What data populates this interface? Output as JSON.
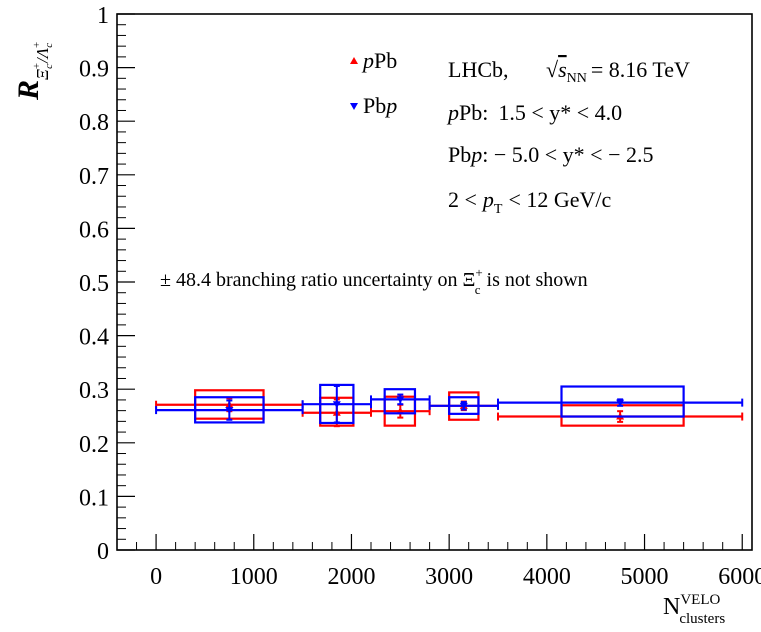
{
  "chart_data": {
    "type": "scatter",
    "title": "",
    "xlabel": {
      "base": "N",
      "sup": "VELO",
      "sub": "clusters"
    },
    "ylabel": {
      "base": "R",
      "sub_num": "Ξ",
      "sub_num_sup": "+",
      "sub_num_sub": "c",
      "sub_den": "Λ",
      "sub_den_sup": "+",
      "sub_den_sub": "c"
    },
    "xlim": [
      -400,
      6100
    ],
    "ylim": [
      0,
      1
    ],
    "xticks": [
      0,
      1000,
      2000,
      3000,
      4000,
      5000,
      6000
    ],
    "xtick_labels": [
      "0",
      "1000",
      "2000",
      "3000",
      "4000",
      "5000",
      "6000"
    ],
    "yticks": [
      0,
      0.1,
      0.2,
      0.3,
      0.4,
      0.5,
      0.6,
      0.7,
      0.8,
      0.9,
      1
    ],
    "ytick_labels": [
      "0",
      "0.1",
      "0.2",
      "0.3",
      "0.4",
      "0.5",
      "0.6",
      "0.7",
      "0.8",
      "0.9",
      "1"
    ],
    "grid": false,
    "legend_position": "top-left",
    "series": [
      {
        "name": "pPb",
        "name_parts": [
          {
            "t": "p",
            "italic": true
          },
          {
            "t": "Pb",
            "italic": false
          }
        ],
        "color": "#ff0000",
        "marker": "triangle-up",
        "points": [
          {
            "x": 750,
            "xlo": 0,
            "xhi": 1500,
            "y": 0.271,
            "stat": 0.012,
            "syslo": 0.245,
            "syshi": 0.298,
            "boxlo": 400,
            "boxhi": 1100
          },
          {
            "x": 1850,
            "xlo": 1500,
            "xhi": 2200,
            "y": 0.256,
            "stat": 0.025,
            "syslo": 0.232,
            "syshi": 0.284,
            "boxlo": 1680,
            "boxhi": 2020
          },
          {
            "x": 2500,
            "xlo": 2200,
            "xhi": 2800,
            "y": 0.259,
            "stat": 0.012,
            "syslo": 0.232,
            "syshi": 0.286,
            "boxlo": 2340,
            "boxhi": 2650
          },
          {
            "x": 3150,
            "xlo": 2800,
            "xhi": 3500,
            "y": 0.269,
            "stat": 0.008,
            "syslo": 0.243,
            "syshi": 0.294,
            "boxlo": 3000,
            "boxhi": 3300
          },
          {
            "x": 4750,
            "xlo": 3500,
            "xhi": 6000,
            "y": 0.249,
            "stat": 0.01,
            "syslo": 0.232,
            "syshi": 0.27,
            "boxlo": 4150,
            "boxhi": 5400
          }
        ]
      },
      {
        "name": "Pbp",
        "name_parts": [
          {
            "t": "Pb",
            "italic": false
          },
          {
            "t": "p",
            "italic": true
          }
        ],
        "color": "#0000ff",
        "marker": "triangle-down",
        "points": [
          {
            "x": 750,
            "xlo": 0,
            "xhi": 1500,
            "y": 0.261,
            "stat": 0.018,
            "syslo": 0.238,
            "syshi": 0.285,
            "boxlo": 400,
            "boxhi": 1100
          },
          {
            "x": 1850,
            "xlo": 1500,
            "xhi": 2200,
            "y": 0.272,
            "stat": 0.034,
            "syslo": 0.237,
            "syshi": 0.308,
            "boxlo": 1680,
            "boxhi": 2020
          },
          {
            "x": 2500,
            "xlo": 2200,
            "xhi": 2800,
            "y": 0.281,
            "stat": 0.009,
            "syslo": 0.255,
            "syshi": 0.3,
            "boxlo": 2340,
            "boxhi": 2650
          },
          {
            "x": 3150,
            "xlo": 2800,
            "xhi": 3500,
            "y": 0.269,
            "stat": 0.007,
            "syslo": 0.254,
            "syshi": 0.285,
            "boxlo": 3000,
            "boxhi": 3300
          },
          {
            "x": 4750,
            "xlo": 3500,
            "xhi": 6000,
            "y": 0.275,
            "stat": 0.006,
            "syslo": 0.249,
            "syshi": 0.305,
            "boxlo": 4150,
            "boxhi": 5400
          }
        ]
      }
    ],
    "annotations": {
      "experiment": "LHCb,",
      "energy": {
        "sqrt": "√",
        "var": "s",
        "var_sub": "NN",
        "value": "= 8.16 TeV"
      },
      "ppb_range": {
        "prefix_italic": "p",
        "prefix": "Pb:",
        "range": "1.5 < y* < 4.0"
      },
      "pbp_range": {
        "prefix": "Pb",
        "prefix_italic": "p",
        "range": ": − 5.0 < y* < − 2.5"
      },
      "pt_range": {
        "left": "2 <",
        "var": "p",
        "var_sub": "T",
        "right": "< 12 GeV/c"
      },
      "br_note": {
        "left": "± 48.4 branching ratio uncertainty on Ξ",
        "sup": "+",
        "sub": "c",
        "right": "is not shown"
      }
    }
  }
}
